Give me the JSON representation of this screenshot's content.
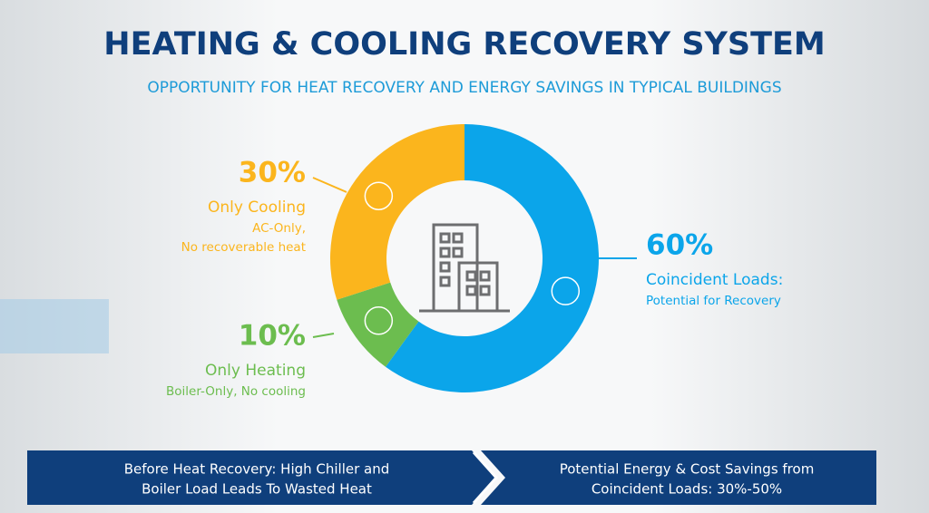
{
  "chart_data": {
    "type": "pie",
    "donut": true,
    "title": "HEATING & COOLING RECOVERY SYSTEM",
    "subtitle": "OPPORTUNITY FOR HEAT RECOVERY AND ENERGY SAVINGS IN TYPICAL BUILDINGS",
    "categories": [
      "Coincident Loads:",
      "Only Heating",
      "Only Cooling"
    ],
    "values": [
      60,
      10,
      30
    ],
    "value_labels": [
      "60%",
      "10%",
      "30%"
    ],
    "descriptions": [
      [
        "Potential for Recovery"
      ],
      [
        "Boiler-Only, No cooling"
      ],
      [
        "AC-Only,",
        "No recoverable heat"
      ]
    ],
    "colors": [
      "#0ba5ea",
      "#6cbd4f",
      "#fbb51d"
    ]
  },
  "footer": {
    "steps": [
      [
        "Before Heat Recovery: High Chiller and",
        "Boiler Load Leads To Wasted Heat"
      ],
      [
        "Potential Energy & Cost Savings from",
        "Coincident Loads: 30%-50%"
      ]
    ]
  }
}
